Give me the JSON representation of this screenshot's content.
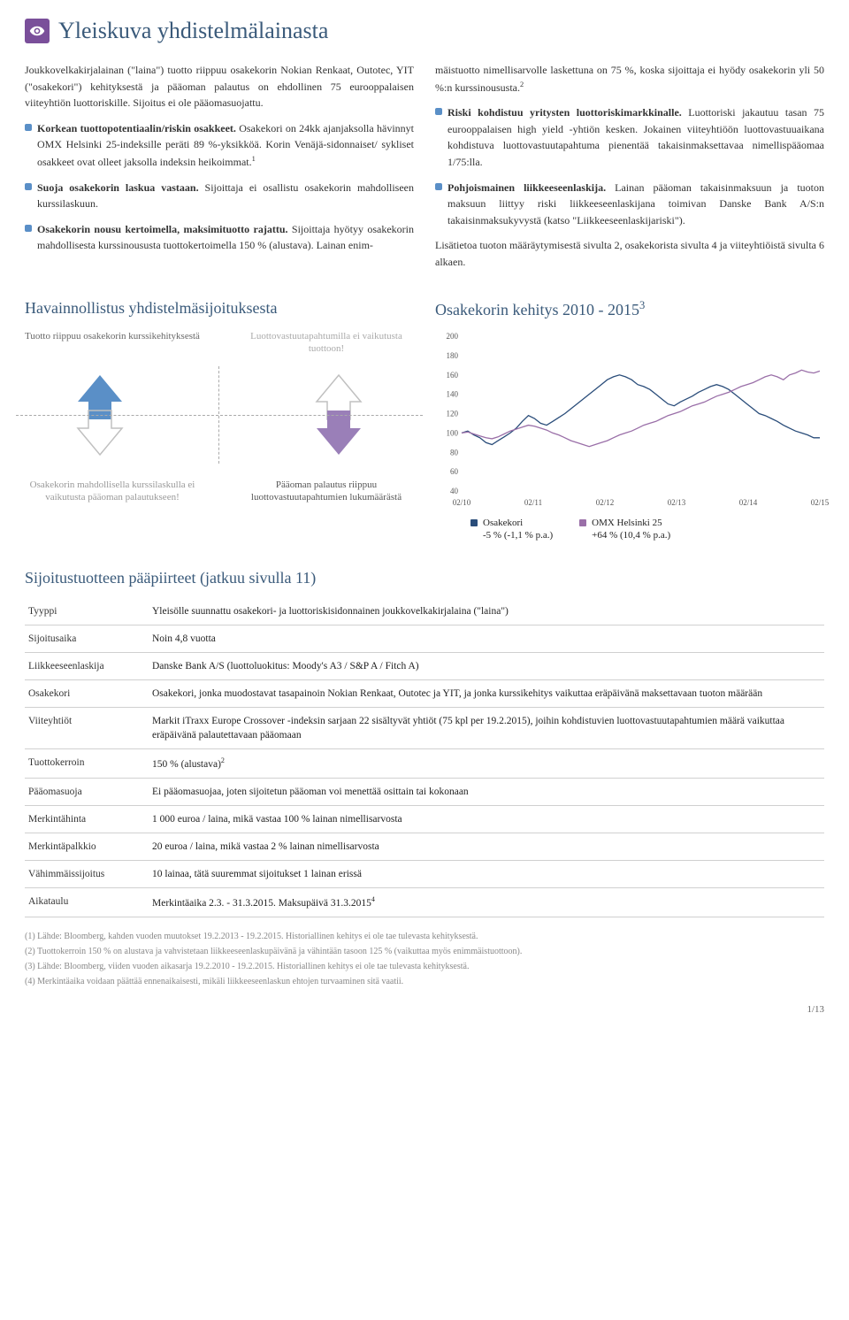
{
  "title": "Yleiskuva yhdistelmälainasta",
  "col_left": {
    "intro": "Joukkovelkakirjalainan (\"laina\") tuotto riippuu osakekorin Nokian Renkaat, Outotec, YIT (\"osakekori\") kehityksestä ja pääoman palautus on ehdollinen 75 eurooppalaisen viiteyhtiön luottoriskille. Sijoitus ei ole pääomasuojattu.",
    "b1_bold": "Korkean tuottopotentiaalin/riskin osakkeet.",
    "b1_rest": " Osakekori on 24kk ajanjaksolla hävinnyt OMX Helsinki 25-indeksille peräti 89 %-yksikköä. Korin Venäjä-sidonnaiset/ sykliset osakkeet ovat olleet jaksolla indeksin heikoimmat.",
    "b1_sup": "1",
    "b2_bold": "Suoja osakekorin laskua vastaan.",
    "b2_rest": " Sijoittaja ei osallistu osakekorin mahdolliseen kurssilaskuun.",
    "b3_bold": "Osakekorin nousu kertoimella, maksimituotto rajattu.",
    "b3_rest": " Sijoittaja hyötyy osakekorin mahdollisesta kurssinoususta tuottokertoimella 150 % (alustava). Lainan enim-"
  },
  "col_right": {
    "cont": "mäistuotto nimellisarvolle laskettuna on 75 %, koska sijoittaja ei hyödy osakekorin yli 50 %:n kurssinoususta.",
    "cont_sup": "2",
    "b1_bold": "Riski kohdistuu yritysten luottoriskimarkkinalle.",
    "b1_rest": " Luottoriski jakautuu tasan 75 eurooppalaisen high yield -yhtiön kesken. Jokainen viiteyhtiöön luottovastuuaikana kohdistuva luottovastuutapahtuma pienentää takaisinmaksettavaa nimellispääomaa 1/75:lla.",
    "b2_bold": "Pohjoismainen liikkeeseenlaskija.",
    "b2_rest": " Lainan pääoman takaisinmaksuun ja tuoton maksuun liittyy riski liikkeeseenlaskijana toimivan Danske Bank A/S:n takaisinmaksukyvystä (katso \"Liikkeeseenlaskijariski\").",
    "info": "Lisätietoa tuoton määräytymisestä sivulta 2, osakekorista sivulta 4 ja viiteyhtiöistä sivulta 6 alkaen."
  },
  "illus": {
    "title": "Havainnollistus yhdistelmäsijoituksesta",
    "top_left": "Tuotto riippuu osakekorin kurssikehityksestä",
    "top_right": "Luottovastuutapahtumilla ei vaikutusta tuottoon!",
    "bot_left": "Osakekorin mahdollisella kurssilaskulla ei vaikutusta pääoman palautukseen!",
    "bot_right": "Pääoman palautus riippuu luottovastuutapahtumien lukumäärästä",
    "colors": {
      "blue": "#5a8fc7",
      "purple": "#9a7fb8",
      "outline": "#c0c0c0"
    }
  },
  "chart": {
    "title": "Osakekorin kehitys 2010 - 2015",
    "title_sup": "3",
    "ylim": [
      40,
      200
    ],
    "yticks": [
      40,
      60,
      80,
      100,
      120,
      140,
      160,
      180,
      200
    ],
    "xticks": [
      "02/10",
      "02/11",
      "02/12",
      "02/13",
      "02/14",
      "02/15"
    ],
    "series": [
      {
        "name": "Osakekori",
        "sub": "-5 % (-1,1 % p.a.)",
        "color": "#2a4d7a",
        "points": [
          100,
          102,
          98,
          95,
          90,
          88,
          92,
          96,
          100,
          105,
          112,
          118,
          115,
          110,
          108,
          112,
          116,
          120,
          125,
          130,
          135,
          140,
          145,
          150,
          155,
          158,
          160,
          158,
          155,
          150,
          148,
          145,
          140,
          135,
          130,
          128,
          132,
          135,
          138,
          142,
          145,
          148,
          150,
          148,
          145,
          140,
          135,
          130,
          125,
          120,
          118,
          115,
          112,
          108,
          105,
          102,
          100,
          98,
          95,
          95
        ]
      },
      {
        "name": "OMX Helsinki 25",
        "sub": "+64 % (10,4 % p.a.)",
        "color": "#9a6fa8",
        "points": [
          100,
          101,
          99,
          97,
          95,
          94,
          96,
          99,
          102,
          104,
          106,
          108,
          107,
          105,
          103,
          100,
          98,
          95,
          92,
          90,
          88,
          86,
          88,
          90,
          92,
          95,
          98,
          100,
          102,
          105,
          108,
          110,
          112,
          115,
          118,
          120,
          122,
          125,
          128,
          130,
          132,
          135,
          138,
          140,
          142,
          145,
          148,
          150,
          152,
          155,
          158,
          160,
          158,
          155,
          160,
          162,
          165,
          163,
          162,
          164
        ]
      }
    ]
  },
  "features": {
    "title": "Sijoitustuotteen pääpiirteet (jatkuu sivulla 11)",
    "rows": [
      {
        "k": "Tyyppi",
        "v": "Yleisölle suunnattu osakekori- ja luottoriskisidonnainen joukkovelkakirjalaina (\"laina\")"
      },
      {
        "k": "Sijoitusaika",
        "v": "Noin 4,8 vuotta"
      },
      {
        "k": "Liikkeeseenlaskija",
        "v": "Danske Bank A/S (luottoluokitus: Moody's A3 / S&P A / Fitch A)"
      },
      {
        "k": "Osakekori",
        "v": "Osakekori, jonka muodostavat tasapainoin Nokian Renkaat, Outotec ja YIT, ja jonka kurssikehitys vaikuttaa eräpäivänä maksettavaan tuoton määrään"
      },
      {
        "k": "Viiteyhtiöt",
        "v": "Markit iTraxx Europe Crossover -indeksin sarjaan 22 sisältyvät yhtiöt (75 kpl per 19.2.2015), joihin kohdistuvien luottovastuutapahtumien määrä vaikuttaa eräpäivänä palautettavaan pääomaan"
      },
      {
        "k": "Tuottokerroin",
        "v": "150 % (alustava)",
        "sup": "2"
      },
      {
        "k": "Pääomasuoja",
        "v": "Ei pääomasuojaa, joten sijoitetun pääoman voi menettää osittain tai kokonaan"
      },
      {
        "k": "Merkintähinta",
        "v": "1 000 euroa / laina, mikä vastaa 100 % lainan nimellisarvosta"
      },
      {
        "k": "Merkintäpalkkio",
        "v": "20 euroa / laina, mikä vastaa 2 % lainan nimellisarvosta"
      },
      {
        "k": "Vähimmäissijoitus",
        "v": "10 lainaa, tätä suuremmat sijoitukset 1 lainan erissä"
      },
      {
        "k": "Aikataulu",
        "v": "Merkintäaika 2.3. - 31.3.2015. Maksupäivä 31.3.2015",
        "sup": "4"
      }
    ]
  },
  "footnotes": [
    "(1) Lähde: Bloomberg, kahden vuoden muutokset 19.2.2013 - 19.2.2015. Historiallinen kehitys ei ole tae tulevasta kehityksestä.",
    "(2) Tuottokerroin 150 % on alustava ja vahvistetaan liikkeeseenlaskupäivänä ja vähintään tasoon 125 % (vaikuttaa myös enimmäistuottoon).",
    "(3) Lähde: Bloomberg, viiden vuoden aikasarja 19.2.2010 - 19.2.2015. Historiallinen kehitys ei ole tae tulevasta kehityksestä.",
    "(4) Merkintäaika voidaan päättää ennenaikaisesti, mikäli liikkeeseenlaskun ehtojen turvaaminen sitä vaatii."
  ],
  "page_num": "1/13"
}
